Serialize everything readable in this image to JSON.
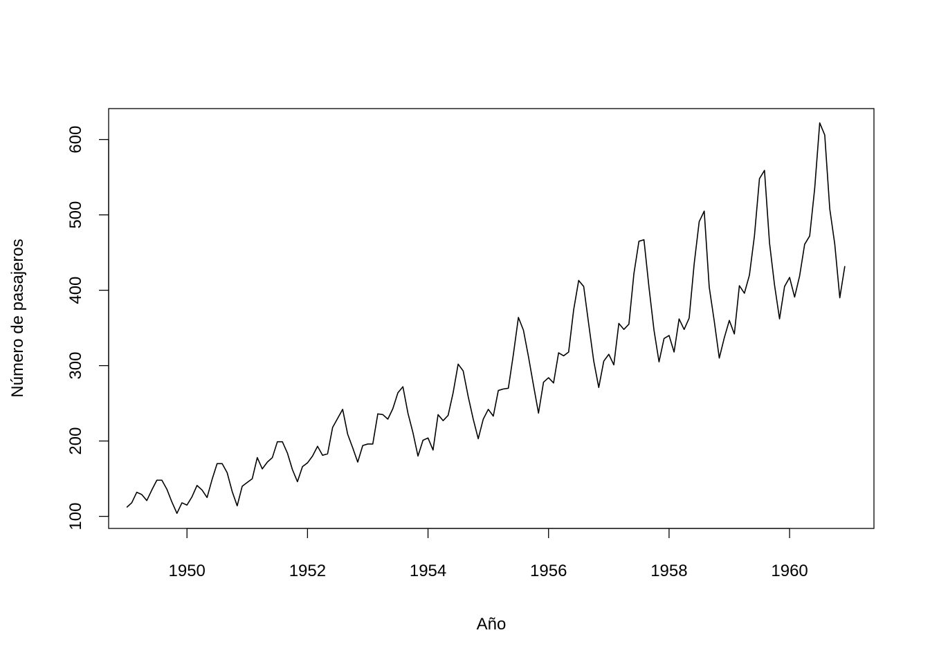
{
  "chart_data": {
    "type": "line",
    "title": "",
    "xlabel": "Año",
    "ylabel": "Número de pasajeros",
    "xlim": [
      1948.7,
      1961.4
    ],
    "ylim": [
      84,
      641
    ],
    "x_ticks": [
      1950,
      1952,
      1954,
      1956,
      1958,
      1960
    ],
    "y_ticks": [
      100,
      200,
      300,
      400,
      500,
      600
    ],
    "x_tick_labels": [
      "1950",
      "1952",
      "1954",
      "1956",
      "1958",
      "1960"
    ],
    "y_tick_labels": [
      "100",
      "200",
      "300",
      "400",
      "500",
      "600"
    ],
    "grid": false,
    "legend": "none",
    "line_color": "#000000",
    "x_start": 1949.0,
    "x_step": 0.0833333,
    "series": [
      {
        "values": [
          112,
          118,
          132,
          129,
          121,
          135,
          148,
          148,
          136,
          119,
          104,
          118,
          115,
          126,
          141,
          135,
          125,
          149,
          170,
          170,
          158,
          133,
          114,
          140,
          145,
          150,
          178,
          163,
          172,
          178,
          199,
          199,
          184,
          162,
          146,
          166,
          171,
          180,
          193,
          181,
          183,
          218,
          230,
          242,
          209,
          191,
          172,
          194,
          196,
          196,
          236,
          235,
          229,
          243,
          264,
          272,
          237,
          211,
          180,
          201,
          204,
          188,
          235,
          227,
          234,
          264,
          302,
          293,
          259,
          229,
          203,
          229,
          242,
          233,
          267,
          269,
          270,
          315,
          364,
          347,
          312,
          274,
          237,
          278,
          284,
          277,
          317,
          313,
          318,
          374,
          413,
          405,
          355,
          306,
          271,
          306,
          315,
          301,
          356,
          348,
          355,
          422,
          465,
          467,
          404,
          347,
          305,
          336,
          340,
          318,
          362,
          348,
          363,
          435,
          491,
          505,
          404,
          359,
          310,
          337,
          360,
          342,
          406,
          396,
          420,
          472,
          548,
          559,
          463,
          407,
          362,
          405,
          417,
          391,
          419,
          461,
          472,
          535,
          622,
          606,
          508,
          461,
          390,
          432
        ]
      }
    ]
  }
}
